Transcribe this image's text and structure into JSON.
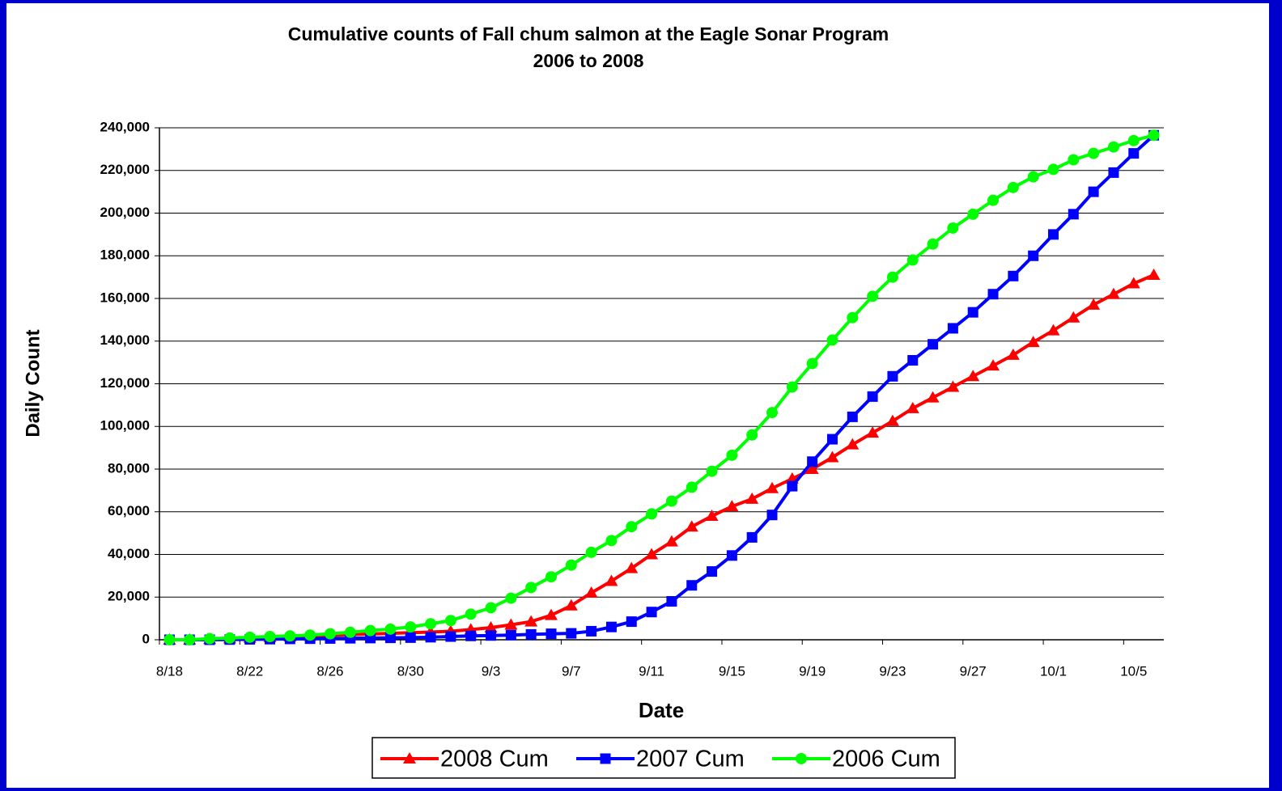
{
  "chart_data": {
    "type": "line",
    "title": "Cumulative counts of Fall chum salmon at the Eagle Sonar Program",
    "subtitle": "2006 to 2008",
    "x_label": "Date",
    "y_label": "Daily Count",
    "categories": [
      "8/18",
      null,
      null,
      null,
      "8/22",
      null,
      null,
      null,
      "8/26",
      null,
      null,
      null,
      "8/30",
      null,
      null,
      null,
      "9/3",
      null,
      null,
      null,
      "9/7",
      null,
      null,
      null,
      "9/11",
      null,
      null,
      null,
      "9/15",
      null,
      null,
      null,
      "9/19",
      null,
      null,
      null,
      "9/23",
      null,
      null,
      null,
      "9/27",
      null,
      null,
      null,
      "10/1",
      null,
      null,
      null,
      "10/5",
      null
    ],
    "series": [
      {
        "name": "2008 Cum",
        "color": "#ff0000",
        "marker": "triangle",
        "values": [
          0,
          0,
          300,
          600,
          900,
          1200,
          1500,
          1800,
          2100,
          2400,
          2700,
          3000,
          3300,
          3600,
          4000,
          4800,
          5700,
          7000,
          8500,
          11500,
          16000,
          22000,
          27500,
          33500,
          40000,
          46000,
          53000,
          58000,
          62500,
          66000,
          71000,
          75500,
          80000,
          85500,
          91500,
          97000,
          102500,
          108500,
          113500,
          118500,
          123500,
          128500,
          133500,
          139500,
          145000,
          151000,
          157000,
          162000,
          167000,
          171000
        ]
      },
      {
        "name": "2007 Cum",
        "color": "#0000ff",
        "marker": "square",
        "values": [
          0,
          0,
          0,
          100,
          200,
          300,
          400,
          500,
          600,
          700,
          800,
          900,
          1000,
          1200,
          1500,
          1800,
          2000,
          2200,
          2500,
          2800,
          3000,
          4000,
          6000,
          8500,
          13000,
          18000,
          25500,
          32000,
          39500,
          48000,
          58500,
          72000,
          83500,
          94000,
          104500,
          114000,
          123500,
          131000,
          138500,
          146000,
          153500,
          162000,
          170500,
          180000,
          190000,
          199500,
          210000,
          219000,
          228000,
          236500
        ]
      },
      {
        "name": "2006 Cum",
        "color": "#00ff00",
        "marker": "circle",
        "values": [
          0,
          0,
          500,
          800,
          1200,
          1500,
          1800,
          2200,
          2800,
          3500,
          4300,
          5000,
          6000,
          7500,
          9000,
          12000,
          15000,
          19500,
          24500,
          29500,
          35000,
          41000,
          46500,
          53000,
          59000,
          65000,
          71500,
          79000,
          86500,
          96000,
          106500,
          118500,
          129500,
          140500,
          151000,
          161000,
          170000,
          178000,
          185500,
          193000,
          199500,
          206000,
          212000,
          217000,
          220500,
          225000,
          228000,
          231000,
          234000,
          236500
        ]
      }
    ],
    "ylim": [
      0,
      240000
    ],
    "yticks": [
      0,
      {
        "value": 20000,
        "label": "20,000"
      },
      {
        "value": 40000,
        "label": "40,000"
      },
      {
        "value": 60000,
        "label": "60,000"
      },
      {
        "value": 80000,
        "label": "80,000"
      },
      {
        "value": 100000,
        "label": "100,000"
      },
      {
        "value": 120000,
        "label": "120,000"
      },
      {
        "value": 140000,
        "label": "140,000"
      },
      {
        "value": 160000,
        "label": "160,000"
      },
      {
        "value": 180000,
        "label": "180,000"
      },
      {
        "value": 200000,
        "label": "200,000"
      },
      {
        "value": 220000,
        "label": "220,000"
      },
      {
        "value": 240000,
        "label": "240,000"
      }
    ],
    "grid": true,
    "legend": "bottom"
  }
}
